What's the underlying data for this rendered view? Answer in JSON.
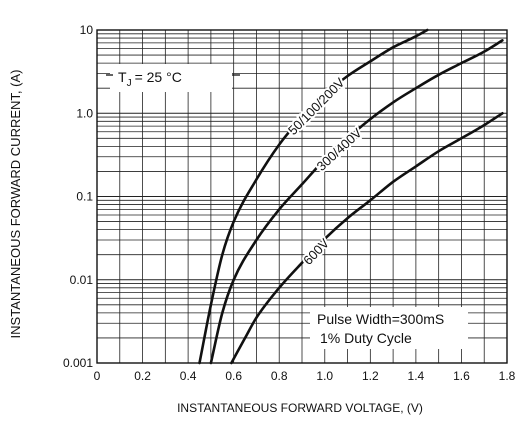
{
  "chart_data": {
    "type": "line",
    "xlabel": "INSTANTANEOUS FORWARD VOLTAGE, (V)",
    "ylabel": "INSTANTANEOUS FORWARD CURRENT, (A)",
    "x_scale": "linear",
    "y_scale": "log",
    "xlim": [
      0,
      1.8
    ],
    "ylim": [
      0.001,
      10
    ],
    "grid": true,
    "x_ticks": [
      "0",
      "0.2",
      "0.4",
      "0.6",
      "0.8",
      "1.0",
      "1.2",
      "1.4",
      "1.6",
      "1.8"
    ],
    "y_ticks": [
      "0.001",
      "0.01",
      "0.1",
      "1.0",
      "10"
    ],
    "annotations": {
      "tj_prefix": "T",
      "tj_sub": "J",
      "tj_value": "= 25 °C",
      "pulse_width": "Pulse Width=300mS",
      "duty_cycle": "1% Duty Cycle"
    },
    "series": [
      {
        "name": "50/100/200V",
        "x": [
          0.45,
          0.5,
          0.55,
          0.6,
          0.7,
          0.8,
          0.9,
          1.0,
          1.1,
          1.2,
          1.3,
          1.4,
          1.45
        ],
        "y": [
          0.001,
          0.005,
          0.02,
          0.05,
          0.16,
          0.42,
          0.9,
          1.7,
          2.8,
          4.2,
          6.2,
          8.4,
          10
        ]
      },
      {
        "name": "300/400V",
        "x": [
          0.5,
          0.55,
          0.6,
          0.7,
          0.8,
          0.9,
          1.0,
          1.1,
          1.2,
          1.3,
          1.4,
          1.5,
          1.6,
          1.7,
          1.78
        ],
        "y": [
          0.001,
          0.004,
          0.01,
          0.03,
          0.07,
          0.14,
          0.28,
          0.5,
          0.85,
          1.35,
          2.0,
          2.9,
          4.0,
          5.5,
          7.5
        ]
      },
      {
        "name": "600V",
        "x": [
          0.59,
          0.65,
          0.7,
          0.8,
          0.9,
          1.0,
          1.1,
          1.2,
          1.3,
          1.4,
          1.5,
          1.6,
          1.7,
          1.78
        ],
        "y": [
          0.001,
          0.002,
          0.0035,
          0.008,
          0.016,
          0.031,
          0.055,
          0.09,
          0.15,
          0.23,
          0.35,
          0.5,
          0.72,
          1.0
        ]
      }
    ]
  }
}
